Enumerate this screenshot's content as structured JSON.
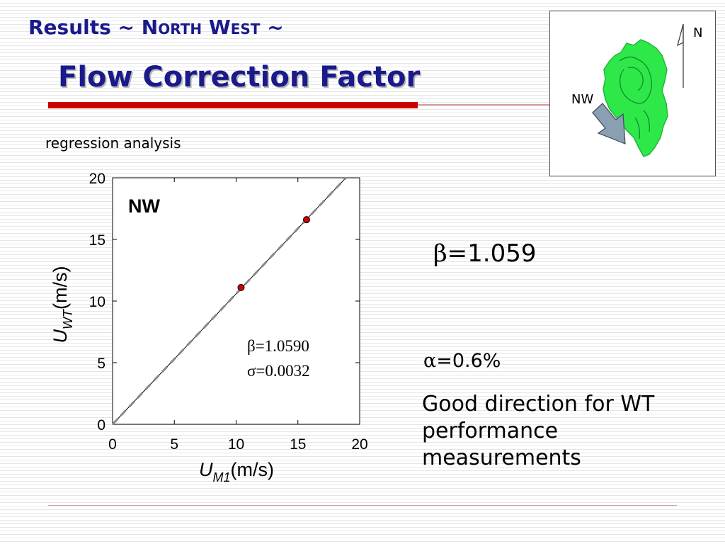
{
  "header": {
    "title_prefix": "Results ~ ",
    "north_cap": "N",
    "north_rest": "ORTH",
    "west_cap": "W",
    "west_rest": "EST",
    "title_suffix": " ~",
    "main_title": "Flow Correction Factor",
    "subtitle": "regression analysis"
  },
  "map": {
    "north_label": "N",
    "nw_label": "NW",
    "region_color": "#2ee84a"
  },
  "results": {
    "beta_symbol": "β",
    "beta_text": "=1.059",
    "alpha_symbol": "α",
    "alpha_text": "=0.6%",
    "comment": "Good direction for WT performance measurements"
  },
  "chart_data": {
    "type": "scatter",
    "panel_label": "NW",
    "xlim": [
      0,
      20
    ],
    "ylim": [
      0,
      20
    ],
    "xticks": [
      0,
      5,
      10,
      15,
      20
    ],
    "yticks": [
      0,
      5,
      10,
      15,
      20
    ],
    "xlabel_main": "U",
    "xlabel_sub": "M1",
    "xlabel_unit": "(m/s)",
    "ylabel_main": "U",
    "ylabel_sub": "WT",
    "ylabel_unit": "(m/s)",
    "points": [
      {
        "x": 10.4,
        "y": 11.1
      },
      {
        "x": 15.7,
        "y": 16.6
      }
    ],
    "fit_line": {
      "slope": 1.059,
      "intercept": 0
    },
    "annotation_beta": "β=1.0590",
    "annotation_sigma": "σ=0.0032",
    "point_color": "#cc0000",
    "grid": false
  }
}
